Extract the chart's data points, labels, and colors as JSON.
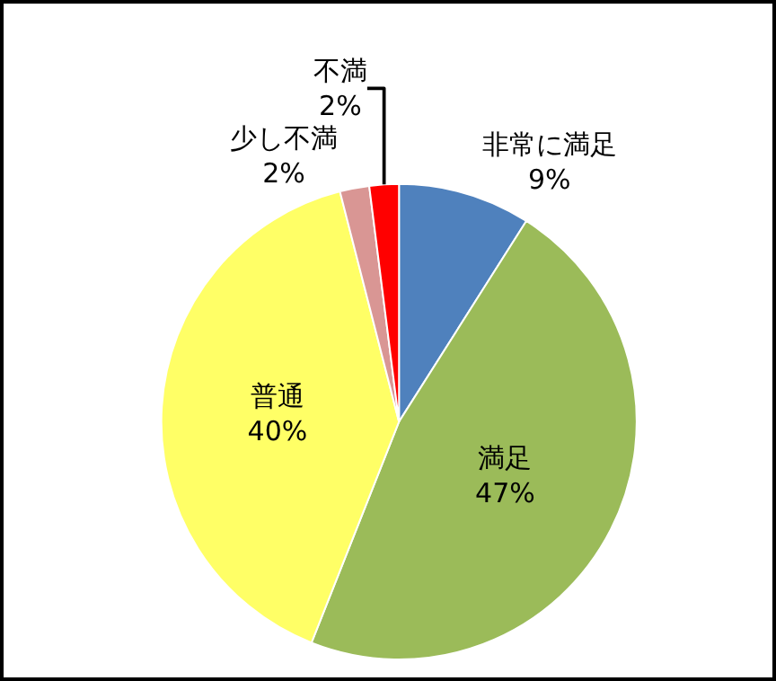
{
  "chart_data": {
    "type": "pie",
    "categories": [
      "非常に満足",
      "満足",
      "普通",
      "少し不満",
      "不満"
    ],
    "values": [
      9,
      47,
      40,
      2,
      2
    ],
    "colors": [
      "#4f81bd",
      "#9bbb59",
      "#ffff66",
      "#d99694",
      "#ff0000"
    ],
    "value_labels": [
      "9%",
      "47%",
      "40%",
      "2%",
      "2%"
    ],
    "legend": false
  }
}
